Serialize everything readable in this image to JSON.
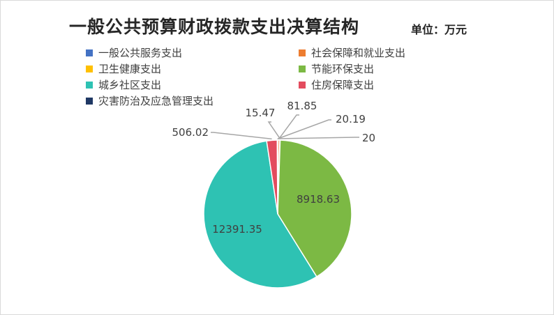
{
  "chart_data": {
    "type": "pie",
    "title": "一般公共预算财政拨款支出决算结构",
    "unit_label": "单位：万元",
    "categories": [
      "一般公共服务支出",
      "社会保障和就业支出",
      "卫生健康支出",
      "节能环保支出",
      "城乡社区支出",
      "住房保障支出",
      "灾害防治及应急管理支出"
    ],
    "values": [
      20.19,
      81.85,
      15.47,
      8918.63,
      12391.35,
      506.02,
      20
    ],
    "labels": [
      "20.19",
      "81.85",
      "15.47",
      "8918.63",
      "12391.35",
      "506.02",
      "20"
    ],
    "colors": [
      "#4472c4",
      "#ed7d31",
      "#ffc000",
      "#7cb944",
      "#2ec2b3",
      "#e34c5e",
      "#1f3864"
    ],
    "legend_position": "top"
  }
}
